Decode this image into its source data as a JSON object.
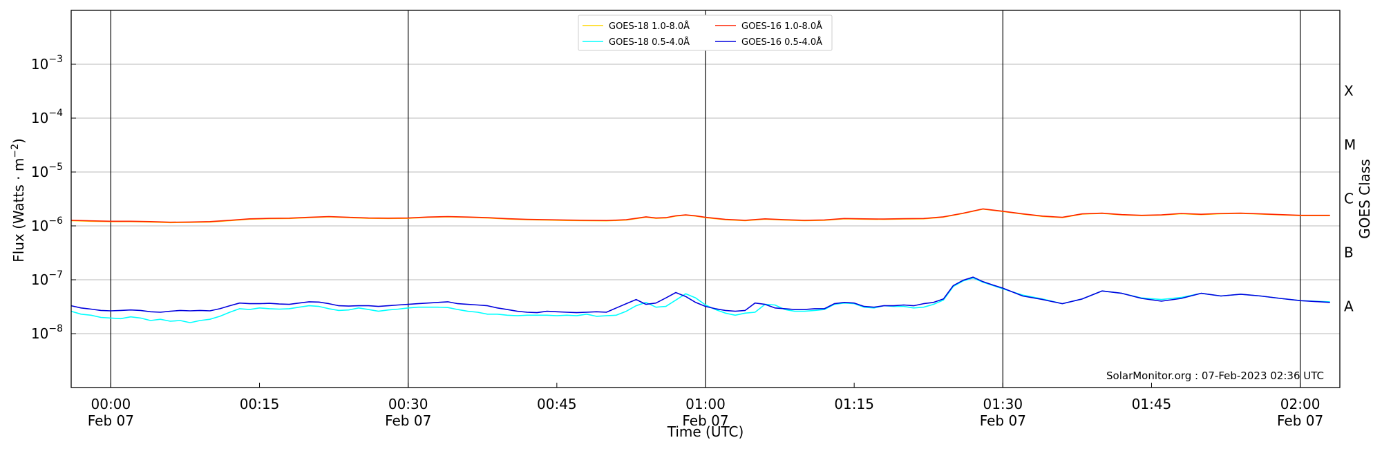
{
  "chart_data": {
    "type": "line",
    "ylabel": "Flux (Watts · m",
    "ylabel_sup": "−2",
    "ylabel_end": ")",
    "xlabel": "Time (UTC)",
    "right_label": "GOES Class",
    "credit": "SolarMonitor.org : 07-Feb-2023 02:36 UTC",
    "y_scale": "log",
    "ylim": [
      1e-09,
      0.01
    ],
    "xlim_minutes": [
      -4,
      124
    ],
    "grid": "horizontal at decades 1e-8..1e-3",
    "legend_placement": "top-center",
    "y_ticks": [
      {
        "value": 1e-08,
        "base": "10",
        "exp": "−8"
      },
      {
        "value": 1e-07,
        "base": "10",
        "exp": "−7"
      },
      {
        "value": 1e-06,
        "base": "10",
        "exp": "−6"
      },
      {
        "value": 1e-05,
        "base": "10",
        "exp": "−5"
      },
      {
        "value": 0.0001,
        "base": "10",
        "exp": "−4"
      },
      {
        "value": 0.001,
        "base": "10",
        "exp": "−3"
      }
    ],
    "x_ticks": [
      {
        "minute": 0,
        "time": "00:00",
        "date": "Feb 07"
      },
      {
        "minute": 15,
        "time": "00:15",
        "date": ""
      },
      {
        "minute": 30,
        "time": "00:30",
        "date": "Feb 07"
      },
      {
        "minute": 45,
        "time": "00:45",
        "date": ""
      },
      {
        "minute": 60,
        "time": "01:00",
        "date": "Feb 07"
      },
      {
        "minute": 75,
        "time": "01:15",
        "date": ""
      },
      {
        "minute": 90,
        "time": "01:30",
        "date": "Feb 07"
      },
      {
        "minute": 105,
        "time": "01:45",
        "date": ""
      },
      {
        "minute": 120,
        "time": "02:00",
        "date": "Feb 07"
      }
    ],
    "vertical_lines_minutes": [
      0,
      30,
      60,
      90,
      120
    ],
    "goes_classes": [
      {
        "label": "X",
        "flux": 0.00032
      },
      {
        "label": "M",
        "flux": 3.2e-05
      },
      {
        "label": "C",
        "flux": 3.2e-06
      },
      {
        "label": "B",
        "flux": 3.2e-07
      },
      {
        "label": "A",
        "flux": 3.2e-08
      }
    ],
    "series": [
      {
        "name": "GOES-18 1.0-8.0Å",
        "color": "#ffd700",
        "x": [
          -4,
          -2,
          0,
          2,
          4,
          6,
          8,
          10,
          12,
          14,
          16,
          18,
          20,
          22,
          24,
          26,
          28,
          30,
          32,
          34,
          36,
          38,
          40,
          42,
          44,
          46,
          48,
          50,
          52,
          54,
          55,
          56,
          57,
          58,
          59,
          60,
          62,
          64,
          66,
          68,
          70,
          72,
          74,
          76,
          78,
          80,
          82,
          84,
          86,
          88,
          90,
          92,
          94,
          96,
          98,
          100,
          102,
          104,
          106,
          108,
          110,
          112,
          114,
          116,
          118,
          120,
          123
        ],
        "y": [
          1.25e-06,
          1.22e-06,
          1.2e-06,
          1.2e-06,
          1.18e-06,
          1.15e-06,
          1.16e-06,
          1.18e-06,
          1.25e-06,
          1.33e-06,
          1.36e-06,
          1.37e-06,
          1.42e-06,
          1.47e-06,
          1.42e-06,
          1.38e-06,
          1.37e-06,
          1.38e-06,
          1.44e-06,
          1.47e-06,
          1.44e-06,
          1.4e-06,
          1.34e-06,
          1.3e-06,
          1.28e-06,
          1.26e-06,
          1.25e-06,
          1.24e-06,
          1.28e-06,
          1.45e-06,
          1.38e-06,
          1.4e-06,
          1.52e-06,
          1.58e-06,
          1.52e-06,
          1.42e-06,
          1.3e-06,
          1.25e-06,
          1.33e-06,
          1.28e-06,
          1.25e-06,
          1.27e-06,
          1.35e-06,
          1.33e-06,
          1.32e-06,
          1.34e-06,
          1.35e-06,
          1.45e-06,
          1.7e-06,
          2.05e-06,
          1.85e-06,
          1.65e-06,
          1.5e-06,
          1.42e-06,
          1.65e-06,
          1.7e-06,
          1.6e-06,
          1.55e-06,
          1.58e-06,
          1.68e-06,
          1.62e-06,
          1.68e-06,
          1.7e-06,
          1.65e-06,
          1.6e-06,
          1.55e-06,
          1.55e-06
        ]
      },
      {
        "name": "GOES-18 0.5-4.0Å",
        "color": "#00ffff",
        "x": [
          -4,
          -3,
          -2,
          -1,
          0,
          1,
          2,
          3,
          4,
          5,
          6,
          7,
          8,
          9,
          10,
          11,
          12,
          13,
          14,
          15,
          16,
          17,
          18,
          19,
          20,
          21,
          22,
          23,
          24,
          25,
          26,
          27,
          28,
          29,
          30,
          31,
          32,
          33,
          34,
          35,
          36,
          37,
          38,
          39,
          40,
          41,
          42,
          43,
          44,
          45,
          46,
          47,
          48,
          49,
          50,
          51,
          52,
          53,
          54,
          55,
          56,
          57,
          58,
          59,
          60,
          61,
          62,
          63,
          64,
          65,
          66,
          67,
          68,
          69,
          70,
          71,
          72,
          73,
          74,
          75,
          76,
          77,
          78,
          79,
          80,
          81,
          82,
          83,
          84,
          85,
          86,
          87,
          88,
          89,
          90,
          92,
          94,
          96,
          98,
          100,
          102,
          104,
          106,
          108,
          110,
          112,
          114,
          116,
          118,
          120,
          123
        ],
        "y": [
          2.6e-08,
          2.3e-08,
          2.2e-08,
          2e-08,
          1.95e-08,
          1.9e-08,
          2.05e-08,
          1.95e-08,
          1.75e-08,
          1.85e-08,
          1.7e-08,
          1.75e-08,
          1.6e-08,
          1.75e-08,
          1.85e-08,
          2.1e-08,
          2.5e-08,
          2.9e-08,
          2.8e-08,
          3e-08,
          2.9e-08,
          2.85e-08,
          2.9e-08,
          3.1e-08,
          3.3e-08,
          3.2e-08,
          2.9e-08,
          2.7e-08,
          2.75e-08,
          3e-08,
          2.8e-08,
          2.6e-08,
          2.75e-08,
          2.85e-08,
          3e-08,
          3.1e-08,
          3.1e-08,
          3.1e-08,
          3.05e-08,
          2.8e-08,
          2.6e-08,
          2.5e-08,
          2.3e-08,
          2.3e-08,
          2.2e-08,
          2.15e-08,
          2.2e-08,
          2.2e-08,
          2.2e-08,
          2.15e-08,
          2.2e-08,
          2.15e-08,
          2.3e-08,
          2.1e-08,
          2.15e-08,
          2.2e-08,
          2.6e-08,
          3.3e-08,
          3.8e-08,
          3.1e-08,
          3.2e-08,
          4.2e-08,
          5.5e-08,
          4.6e-08,
          3.4e-08,
          2.8e-08,
          2.4e-08,
          2.2e-08,
          2.4e-08,
          2.5e-08,
          3.5e-08,
          3.4e-08,
          2.8e-08,
          2.6e-08,
          2.6e-08,
          2.7e-08,
          2.8e-08,
          3.5e-08,
          3.7e-08,
          3.6e-08,
          3.1e-08,
          3e-08,
          3.3e-08,
          3.2e-08,
          3.2e-08,
          3e-08,
          3.1e-08,
          3.5e-08,
          4.2e-08,
          7.5e-08,
          9.5e-08,
          1.08e-07,
          9e-08,
          7.8e-08,
          6.8e-08,
          5.2e-08,
          4.4e-08,
          3.6e-08,
          4.4e-08,
          6.2e-08,
          5.6e-08,
          4.6e-08,
          4.3e-08,
          4.7e-08,
          5.6e-08,
          5e-08,
          5.4e-08,
          5e-08,
          4.5e-08,
          4.1e-08,
          3.9e-08
        ]
      },
      {
        "name": "GOES-16 1.0-8.0Å",
        "color": "#ff2200",
        "x": [
          -4,
          -2,
          0,
          2,
          4,
          6,
          8,
          10,
          12,
          14,
          16,
          18,
          20,
          22,
          24,
          26,
          28,
          30,
          32,
          34,
          36,
          38,
          40,
          42,
          44,
          46,
          48,
          50,
          52,
          54,
          55,
          56,
          57,
          58,
          59,
          60,
          62,
          64,
          66,
          68,
          70,
          72,
          74,
          76,
          78,
          80,
          82,
          84,
          86,
          88,
          90,
          92,
          94,
          96,
          98,
          100,
          102,
          104,
          106,
          108,
          110,
          112,
          114,
          116,
          118,
          120,
          123
        ],
        "y": [
          1.27e-06,
          1.24e-06,
          1.22e-06,
          1.22e-06,
          1.2e-06,
          1.17e-06,
          1.18e-06,
          1.2e-06,
          1.27e-06,
          1.35e-06,
          1.38e-06,
          1.39e-06,
          1.44e-06,
          1.49e-06,
          1.44e-06,
          1.4e-06,
          1.39e-06,
          1.4e-06,
          1.46e-06,
          1.49e-06,
          1.46e-06,
          1.42e-06,
          1.36e-06,
          1.32e-06,
          1.3e-06,
          1.28e-06,
          1.27e-06,
          1.26e-06,
          1.3e-06,
          1.47e-06,
          1.4e-06,
          1.42e-06,
          1.54e-06,
          1.6e-06,
          1.54e-06,
          1.44e-06,
          1.32e-06,
          1.27e-06,
          1.35e-06,
          1.3e-06,
          1.27e-06,
          1.29e-06,
          1.37e-06,
          1.35e-06,
          1.34e-06,
          1.36e-06,
          1.37e-06,
          1.47e-06,
          1.72e-06,
          2.07e-06,
          1.87e-06,
          1.67e-06,
          1.52e-06,
          1.44e-06,
          1.67e-06,
          1.72e-06,
          1.62e-06,
          1.57e-06,
          1.6e-06,
          1.7e-06,
          1.64e-06,
          1.7e-06,
          1.72e-06,
          1.67e-06,
          1.62e-06,
          1.57e-06,
          1.57e-06
        ]
      },
      {
        "name": "GOES-16 0.5-4.0Å",
        "color": "#0000dd",
        "x": [
          -4,
          -3,
          -2,
          -1,
          0,
          1,
          2,
          3,
          4,
          5,
          6,
          7,
          8,
          9,
          10,
          11,
          12,
          13,
          14,
          15,
          16,
          17,
          18,
          19,
          20,
          21,
          22,
          23,
          24,
          25,
          26,
          27,
          28,
          29,
          30,
          31,
          32,
          33,
          34,
          35,
          36,
          37,
          38,
          39,
          40,
          41,
          42,
          43,
          44,
          45,
          46,
          47,
          48,
          49,
          50,
          51,
          52,
          53,
          54,
          55,
          56,
          57,
          58,
          59,
          60,
          61,
          62,
          63,
          64,
          65,
          66,
          67,
          68,
          69,
          70,
          71,
          72,
          73,
          74,
          75,
          76,
          77,
          78,
          79,
          80,
          81,
          82,
          83,
          84,
          85,
          86,
          87,
          88,
          89,
          90,
          92,
          94,
          96,
          98,
          100,
          102,
          104,
          106,
          108,
          110,
          112,
          114,
          116,
          118,
          120,
          123
        ],
        "y": [
          3.3e-08,
          3e-08,
          2.85e-08,
          2.7e-08,
          2.65e-08,
          2.7e-08,
          2.75e-08,
          2.7e-08,
          2.55e-08,
          2.5e-08,
          2.6e-08,
          2.7e-08,
          2.65e-08,
          2.7e-08,
          2.65e-08,
          2.9e-08,
          3.3e-08,
          3.7e-08,
          3.6e-08,
          3.6e-08,
          3.65e-08,
          3.55e-08,
          3.5e-08,
          3.7e-08,
          3.9e-08,
          3.85e-08,
          3.6e-08,
          3.3e-08,
          3.25e-08,
          3.3e-08,
          3.3e-08,
          3.2e-08,
          3.3e-08,
          3.4e-08,
          3.5e-08,
          3.6e-08,
          3.7e-08,
          3.8e-08,
          3.9e-08,
          3.6e-08,
          3.5e-08,
          3.4e-08,
          3.3e-08,
          3e-08,
          2.8e-08,
          2.6e-08,
          2.5e-08,
          2.45e-08,
          2.6e-08,
          2.55e-08,
          2.5e-08,
          2.45e-08,
          2.5e-08,
          2.55e-08,
          2.5e-08,
          3e-08,
          3.6e-08,
          4.3e-08,
          3.5e-08,
          3.7e-08,
          4.6e-08,
          5.8e-08,
          4.9e-08,
          3.8e-08,
          3.2e-08,
          2.9e-08,
          2.7e-08,
          2.6e-08,
          2.7e-08,
          3.7e-08,
          3.5e-08,
          3e-08,
          2.9e-08,
          2.8e-08,
          2.8e-08,
          2.9e-08,
          2.9e-08,
          3.6e-08,
          3.8e-08,
          3.7e-08,
          3.2e-08,
          3.1e-08,
          3.3e-08,
          3.3e-08,
          3.4e-08,
          3.3e-08,
          3.6e-08,
          3.8e-08,
          4.4e-08,
          7.8e-08,
          9.8e-08,
          1.12e-07,
          9.2e-08,
          8e-08,
          7e-08,
          5e-08,
          4.3e-08,
          3.6e-08,
          4.4e-08,
          6.2e-08,
          5.6e-08,
          4.5e-08,
          4e-08,
          4.5e-08,
          5.6e-08,
          5e-08,
          5.4e-08,
          5e-08,
          4.5e-08,
          4.1e-08,
          3.8e-08
        ]
      }
    ]
  }
}
